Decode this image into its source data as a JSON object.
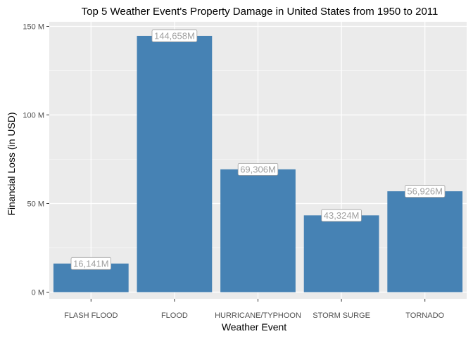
{
  "chart_data": {
    "type": "bar",
    "title": "Top 5 Weather Event's Property Damage in United States from 1950 to 2011",
    "xlabel": "Weather Event",
    "ylabel": "Financial Loss (in USD)",
    "categories": [
      "FLASH FLOOD",
      "FLOOD",
      "HURRICANE/TYPHOON",
      "STORM SURGE",
      "TORNADO"
    ],
    "values": [
      16.141,
      144.658,
      69.306,
      43.324,
      56.926
    ],
    "data_labels": [
      "16,141M",
      "144,658M",
      "69,306M",
      "43,324M",
      "56,926M"
    ],
    "ylim": [
      0,
      150
    ],
    "yticks": [
      0,
      50,
      100,
      150
    ],
    "ytick_labels": [
      "0 M",
      "50 M",
      "100 M",
      "150 M"
    ],
    "grid": true,
    "legend": "none",
    "colors": {
      "bar": "#4682b4",
      "panel": "#ebebeb",
      "grid": "#ffffff",
      "label_text": "#a0a0a0",
      "label_border": "#a0a0a0",
      "label_fill": "#ffffff"
    }
  }
}
